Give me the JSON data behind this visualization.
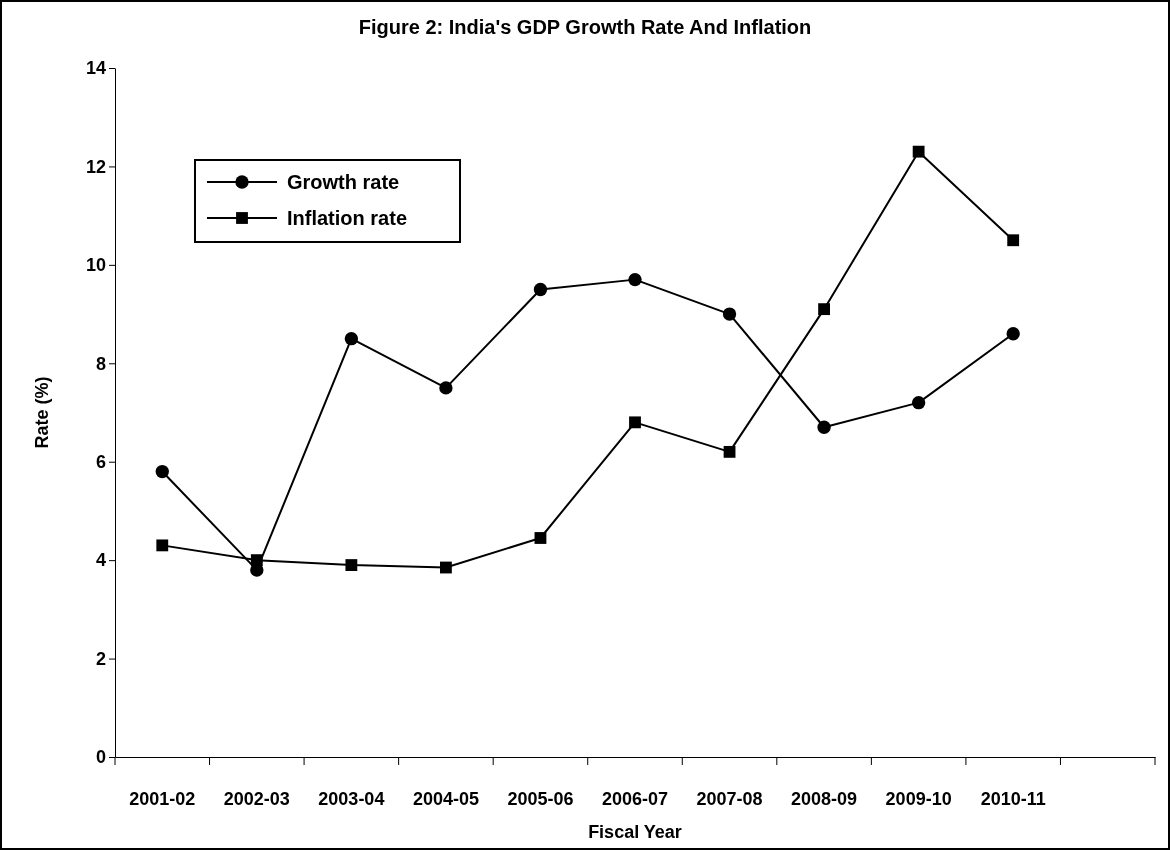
{
  "chart_data": {
    "type": "line",
    "title": "Figure 2: India's GDP Growth Rate And Inflation",
    "xlabel": "Fiscal Year",
    "ylabel": "Rate (%)",
    "categories": [
      "2001-02",
      "2002-03",
      "2003-04",
      "2004-05",
      "2005-06",
      "2006-07",
      "2007-08",
      "2008-09",
      "2009-10",
      "2010-11",
      null
    ],
    "series": [
      {
        "name": "Growth rate",
        "color": "#000000",
        "marker": "circle",
        "line_style": "solid",
        "values": [
          5.8,
          3.8,
          8.5,
          7.5,
          9.5,
          9.7,
          9.0,
          6.7,
          7.2,
          8.6,
          null
        ]
      },
      {
        "name": "Inflation rate",
        "color": "#000000",
        "marker": "square",
        "line_style": "solid",
        "values": [
          4.3,
          4.0,
          3.9,
          3.85,
          4.45,
          6.8,
          6.2,
          9.1,
          12.3,
          10.5,
          null
        ]
      }
    ],
    "ylim": [
      0,
      14
    ],
    "yticks": [
      0,
      2,
      4,
      6,
      8,
      10,
      12,
      14
    ],
    "grid": false,
    "legend": "top left"
  }
}
